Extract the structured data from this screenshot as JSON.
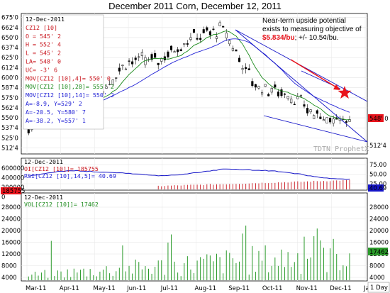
{
  "title": "December 2011 Corn, December 12, 2011",
  "watermark": "TDTN ProphetX",
  "timeframe_label": "1 Day",
  "annotation": {
    "line1": "Near-term upside potential",
    "line2": "exists to measuring objective of",
    "target": "$5.834/bu",
    "tail": "; +/- 10.5¢/bu."
  },
  "price_panel": {
    "legend": [
      "12-Dec-2011",
      "CZ12 [10]",
      "O = 545' 2",
      "H = 552' 4",
      "L = 545' 2",
      "LA= 548' 0",
      "UC= -3' 6",
      "MOV[CZ12 [10],4]= 550' 0",
      "MOV[CZ12 [10],28]= 555' 2",
      "MOV[CZ12 [10],14]= 550' 2",
      "A=-8.9, Y=529' 2",
      "A=-20.5, Y=580' 7",
      "A=-38.2, Y=557' 1"
    ],
    "y_ticks": [
      "675'0",
      "662'4",
      "650'0",
      "637'4",
      "625'0",
      "612'4",
      "600'0",
      "587'4",
      "575'0",
      "562'4",
      "550'0",
      "537'4",
      "525'0",
      "512'4"
    ],
    "last_price_label": "548' 0",
    "right_price_label": "512'4"
  },
  "osc_panel": {
    "legend": [
      "12-Dec-2011",
      "OI[CZ12 [10]]= 185755",
      "RSI[CZ12 [10],14,5]= 40.69"
    ],
    "left_ticks": [
      "600000",
      "400000",
      "200000",
      "0"
    ],
    "right_ticks": [
      "75.00",
      "50.00",
      "25.00"
    ],
    "oi_value_label": "185755",
    "rsi_value_label": "40.69"
  },
  "vol_panel": {
    "legend": [
      "12-Dec-2011",
      "VOL[CZ12 [10]]= 17462"
    ],
    "ticks": [
      "28000",
      "24000",
      "20000",
      "16000",
      "12000",
      "8000",
      "4000"
    ],
    "value_label": "17462"
  },
  "x_labels": [
    "Mar-11",
    "Apr-11",
    "May-11",
    "Jun-11",
    "Jul-11",
    "Aug-11",
    "Sep-11",
    "Oct-11",
    "Nov-11",
    "Dec-11",
    "Ja"
  ],
  "chart_data": {
    "type": "candlestick",
    "title": "December 2011 Corn, December 12, 2011",
    "instrument": "CZ12",
    "period": "1 Day",
    "last_bar": {
      "date": "12-Dec-2011",
      "open": 545.25,
      "high": 552.5,
      "low": 545.25,
      "close": 548.0,
      "change": -3.75
    },
    "moving_averages": {
      "4": 550.0,
      "14": 550.25,
      "28": 555.25
    },
    "price_ylim": [
      505,
      680
    ],
    "close_series_monthly": [
      {
        "month": "Mar-11",
        "close": 535
      },
      {
        "month": "Apr-11",
        "close": 578
      },
      {
        "month": "May-11",
        "close": 572
      },
      {
        "month": "Jun-11",
        "close": 620
      },
      {
        "month": "Jul-11",
        "close": 622
      },
      {
        "month": "Aug-11",
        "close": 650
      },
      {
        "month": "Sep-11",
        "close": 660
      },
      {
        "month": "Oct-11",
        "close": 590
      },
      {
        "month": "Nov-11",
        "close": 580
      },
      {
        "month": "Dec-11",
        "close": 548
      }
    ],
    "projection_target": 583.4,
    "projection_tolerance_cents": 10.5,
    "open_interest_last": 185755,
    "rsi_last": 40.69,
    "volume_last": 17462,
    "accent_colors": {
      "arrow": "#e8141c",
      "trendline": "#1515c8",
      "ma_short": "#1b8a1b",
      "ma_long": "#2424d6",
      "target_text": "#e8141c"
    }
  }
}
